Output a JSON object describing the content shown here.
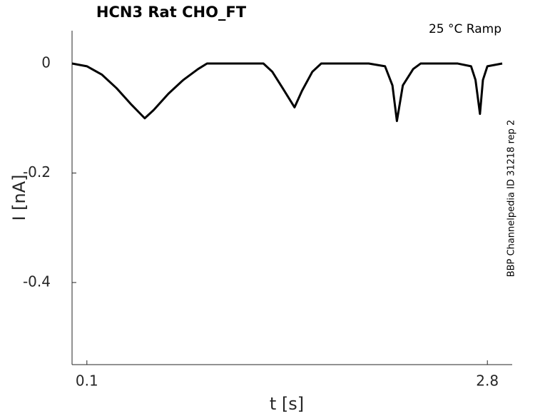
{
  "chart_data": {
    "type": "line",
    "title": "HCN3  Rat  CHO_FT",
    "annotation": "25 °C  Ramp",
    "side_note": "BBP Channelpedia ID 31218 rep 2",
    "x_label": "t [s]",
    "y_label": "I [nA]",
    "x": [
      0,
      0.1,
      0.2,
      0.3,
      0.4,
      0.49,
      0.55,
      0.65,
      0.75,
      0.85,
      0.91,
      1.0,
      1.29,
      1.35,
      1.42,
      1.5,
      1.55,
      1.62,
      1.68,
      2.0,
      2.11,
      2.16,
      2.19,
      2.23,
      2.3,
      2.35,
      2.6,
      2.69,
      2.72,
      2.75,
      2.77,
      2.8,
      2.9
    ],
    "values": [
      0,
      -0.005,
      -0.02,
      -0.045,
      -0.075,
      -0.1,
      -0.085,
      -0.055,
      -0.03,
      -0.01,
      0,
      0,
      0,
      -0.015,
      -0.045,
      -0.08,
      -0.05,
      -0.015,
      0,
      0,
      -0.005,
      -0.04,
      -0.105,
      -0.04,
      -0.01,
      0,
      0,
      -0.005,
      -0.03,
      -0.092,
      -0.03,
      -0.005,
      0
    ],
    "color": "#000000",
    "xlim": [
      0,
      2.9
    ],
    "ylim": [
      -0.55,
      0.06
    ],
    "xticks": [
      0.1,
      2.8
    ],
    "yticks": [
      0,
      -0.2,
      -0.4
    ]
  }
}
